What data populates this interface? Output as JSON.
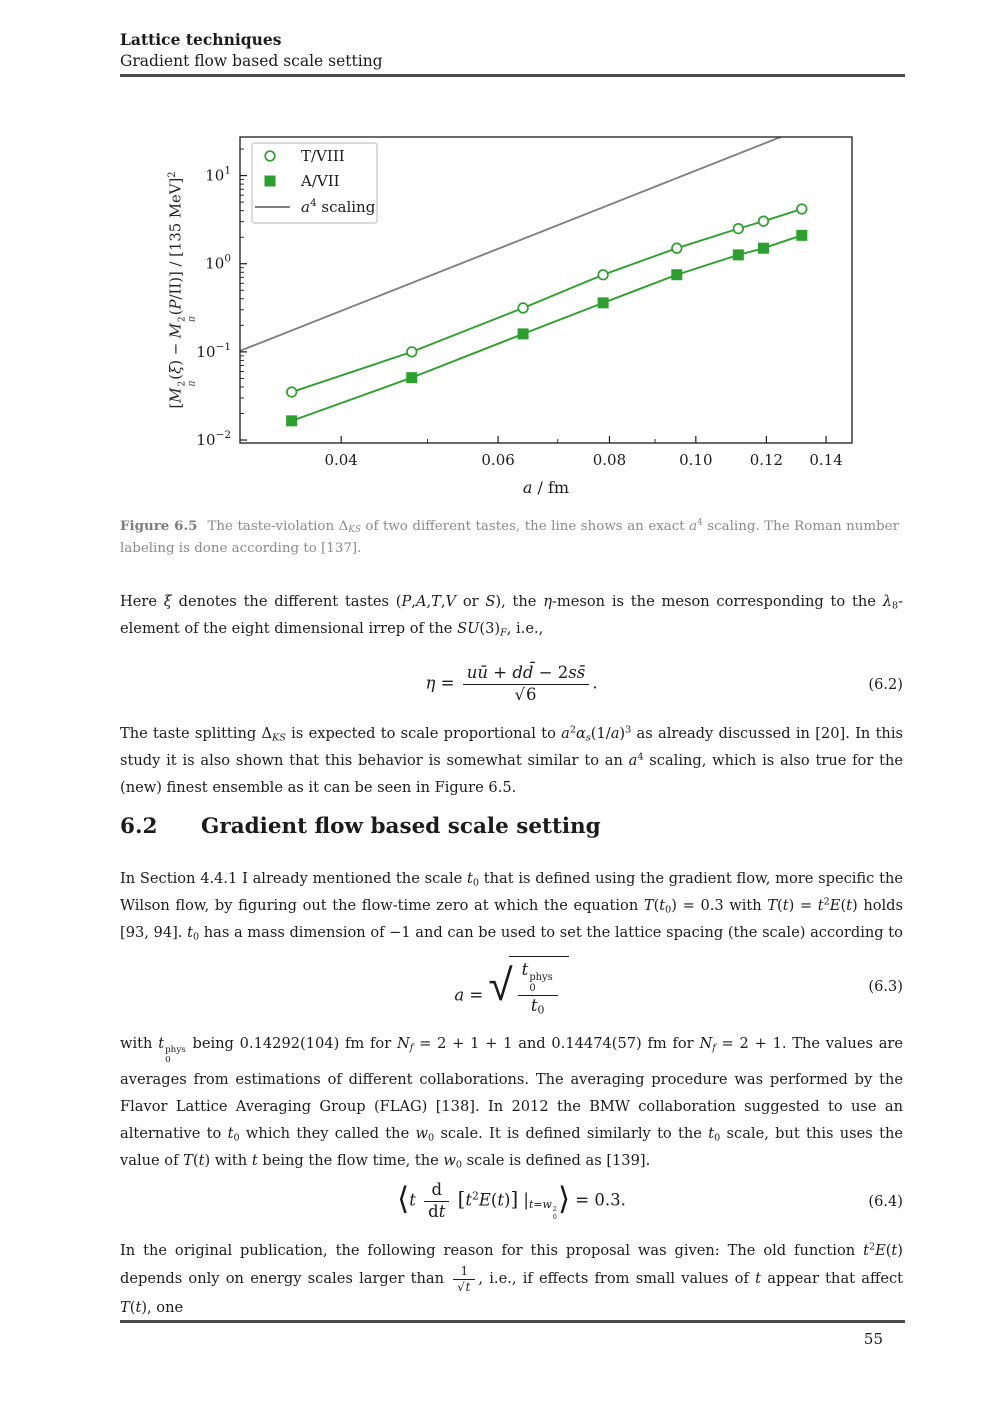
{
  "header": {
    "title": "Lattice techniques",
    "subtitle": "Gradient flow based scale setting"
  },
  "footer": {
    "page_number": "55"
  },
  "figure": {
    "caption_label": "Figure 6.5",
    "caption_html": "The taste-violation Δ<sub><i>KS</i></sub> of two different tastes, the line shows an exact <i>a</i><sup>4</sup> scaling. The Roman number labeling is done according to [137]."
  },
  "section": {
    "number": "6.2",
    "title": "Gradient flow based scale setting"
  },
  "body": {
    "para1": "Here <i>ξ</i> denotes the different tastes (<i>P</i>,<i>A</i>,<i>T</i>,<i>V</i> or <i>S</i>), the <i>η</i>-meson is the meson corresponding to the <i>λ</i><sub>8</sub>-element of the eight dimensional irrep of the <i>SU</i>(3)<sub><i>F</i></sub>, i.e.,",
    "para2": "The taste splitting Δ<sub><i>KS</i></sub> is expected to scale proportional to <i>a</i><sup>2</sup><i>α<sub>s</sub></i>(1/<i>a</i>)<sup>3</sup> as already discussed in [20]. In this study it is also shown that this behavior is somewhat similar to an <i>a</i><sup>4</sup> scaling, which is also true for the (new) finest ensemble as it can be seen in Figure 6.5.",
    "para3": "In Section 4.4.1 I already mentioned the scale <i>t</i><sub>0</sub> that is defined using the gradient flow, more specific the Wilson flow, by figuring out the flow-time zero at which the equation <i>T</i>(<i>t</i><sub>0</sub>) = 0.3 with <i>T</i>(<i>t</i>) = <i>t</i><sup>2</sup><i>E</i>(<i>t</i>) holds [93, 94]. <i>t</i><sub>0</sub> has a mass dimension of −1 and can be used to set the lattice spacing (the scale) according to",
    "para4": "with <i>t</i><span class=\"stk\"><span>phys</span><span>0</span></span> being 0.14292(104) fm for <i>N<sub>f</sub></i> = 2 + 1 + 1 and 0.14474(57) fm for <i>N<sub>f</sub></i> = 2 + 1. The values are averages from estimations of different collaborations. The averaging procedure was performed by the Flavor Lattice Averaging Group (FLAG) [138]. In 2012 the BMW collaboration suggested to use an alternative to <i>t</i><sub>0</sub> which they called the <i>w</i><sub>0</sub> scale. It is defined similarly to the <i>t</i><sub>0</sub> scale, but this uses the value of <i>T</i>(<i>t</i>) with <i>t</i> being the flow time, the <i>w</i><sub>0</sub> scale is defined as [139].",
    "para5": "In the original publication, the following reason for this proposal was given: The old function <i>t</i><sup>2</sup><i>E</i>(<i>t</i>) depends only on energy scales larger than <span class=\"frac fs\"><span class=\"num\">1</span><span class=\"den\"><span class=\"rad\">√</span><span class=\"ovl\"><i>t</i></span></span></span>, i.e., if effects from small values of <i>t</i> appear that affect <i>T</i>(<i>t</i>), one"
  },
  "equations": {
    "eq62": {
      "html": "<i>η</i> = <span class=\"frac\"><span class=\"num\"><i>uū</i> + <i>dd̄</i> − 2<i>ss̄</i></span><span class=\"den\"><span class=\"rad\">√</span><span class=\"ovl\">6</span></span></span>.",
      "number": "(6.2)"
    },
    "eq63": {
      "html": "<i>a</i> = <span class=\"sqrt\"><span class=\"radbig\">√</span><span class=\"radbody\"><span class=\"frac\"><span class=\"num\"><i>t</i><span class=\"stk\"><span>phys</span><span>0</span></span></span><span class=\"den\"><i>t</i><sub>0</sub></span></span></span></span>",
      "number": "(6.3)"
    },
    "eq64": {
      "html": "<span class=\"ang\">⟨</span><i>t</i> <span class=\"frac\"><span class=\"num\">d</span><span class=\"den\">d<i>t</i></span></span> <span class=\"br\">[</span><i>t</i><sup>2</sup><i>E</i>(<i>t</i>)<span class=\"br\">]</span> |<sub><i>t</i>=<i>w</i><span class=\"stk\"><span>2</span><span>0</span></span></sub><span class=\"ang\">⟩</span> = 0.3.",
      "number": "(6.4)"
    }
  },
  "chart_data": {
    "type": "line",
    "xscale": "log",
    "yscale": "log",
    "xlim": [
      0.0308,
      0.1497
    ],
    "ylim": [
      0.00925,
      27.4
    ],
    "xlabel_italic": "a",
    "xlabel_rest": " / fm",
    "ylabel_html": "[<i>M</i><span class=\"stk\"><span>2</span><span><i>π</i></span></span>(<i>ξ</i>) − <i>M</i><span class=\"stk\"><span>2</span><span><i>π</i></span></span>(<i>P</i>/II)] / [135 MeV]<sup>2</sup>",
    "x_ticks": {
      "major": [
        0.04,
        0.06,
        0.08,
        0.1,
        0.12,
        0.14
      ],
      "labels": [
        "0.04",
        "0.06",
        "0.08",
        "0.10",
        "0.12",
        "0.14"
      ],
      "minor": [
        0.05,
        0.07,
        0.09
      ]
    },
    "y_ticks": {
      "major": [
        0.01,
        0.1,
        1,
        10
      ],
      "labels": [
        {
          "base": "10",
          "exp": "−2"
        },
        {
          "base": "10",
          "exp": "−1"
        },
        {
          "base": "10",
          "exp": "0"
        },
        {
          "base": "10",
          "exp": "1"
        }
      ]
    },
    "series": [
      {
        "name": "T/VIII",
        "marker": "circle-open",
        "color": "#2ca02c",
        "x": [
          0.0352,
          0.048,
          0.064,
          0.0787,
          0.0952,
          0.1116,
          0.1191,
          0.1315
        ],
        "y": [
          0.035,
          0.1,
          0.315,
          0.75,
          1.5,
          2.5,
          3.04,
          4.18
        ]
      },
      {
        "name": "A/VII",
        "marker": "square-filled",
        "color": "#2ca02c",
        "x": [
          0.0352,
          0.048,
          0.064,
          0.0787,
          0.0952,
          0.1116,
          0.1191,
          0.1315
        ],
        "y": [
          0.0165,
          0.051,
          0.16,
          0.36,
          0.75,
          1.26,
          1.5,
          2.1
        ]
      }
    ],
    "reference_line": {
      "name_base": "a",
      "name_exp": "4",
      "name_rest": " scaling",
      "color": "#808080",
      "coefficient": 114000,
      "power": 4
    },
    "legend": {
      "position": "upper-left",
      "entries": [
        {
          "text": "T/VIII",
          "marker": "circle-open",
          "color": "#2ca02c"
        },
        {
          "text": "A/VII",
          "marker": "square-filled",
          "color": "#2ca02c"
        },
        {
          "base": "a",
          "exp": "4",
          "rest": " scaling",
          "marker": "line",
          "color": "#808080"
        }
      ]
    }
  }
}
